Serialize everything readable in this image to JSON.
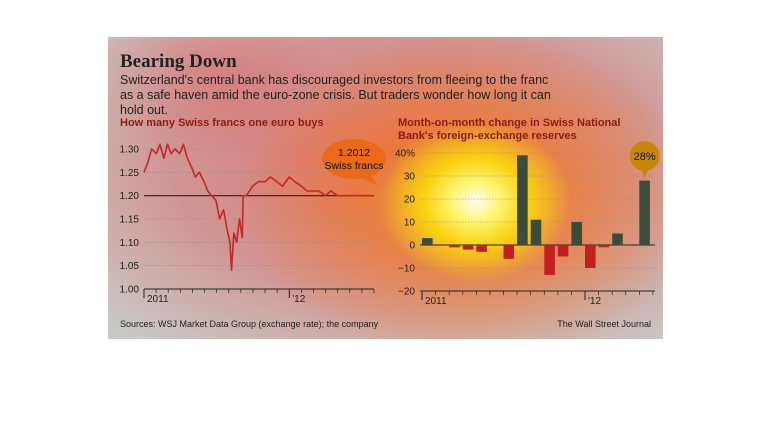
{
  "header": {
    "title": "Bearing Down",
    "subtitle": "Switzerland's central bank has discouraged investors from fleeing to the franc as a safe haven amid the euro-zone crisis. But traders wonder how long it can hold out."
  },
  "footer": {
    "sources": "Sources: WSJ Market Data Group (exchange rate); the company",
    "credit": "The Wall Street Journal"
  },
  "colors": {
    "line": "#c0282a",
    "positive_bar": "#3d4c3a",
    "negative_bar": "#c21e24",
    "callout": "#e86a1a",
    "callout_dark": "#c8870c"
  },
  "chart_data": [
    {
      "type": "line",
      "title": "How many Swiss francs one euro buys",
      "x_start": "2011-01",
      "x_end": "2012-08",
      "x_tick_labels": [
        "2011",
        "'12"
      ],
      "ylim": [
        1.0,
        1.3
      ],
      "y_ticks": [
        "1.30",
        "1.25",
        "1.20",
        "1.15",
        "1.10",
        "1.05",
        "1.00"
      ],
      "reference_line": 1.2,
      "annotation": {
        "value": "1.2012",
        "label": "Swiss francs"
      },
      "series": [
        {
          "x": [
            "2011-01-01",
            "2011-01-10",
            "2011-01-20",
            "2011-02-01",
            "2011-02-10",
            "2011-02-20",
            "2011-03-01",
            "2011-03-10",
            "2011-03-20",
            "2011-04-01",
            "2011-04-10",
            "2011-04-20",
            "2011-05-01",
            "2011-05-10",
            "2011-05-20",
            "2011-06-01",
            "2011-06-10",
            "2011-06-20",
            "2011-07-01",
            "2011-07-10",
            "2011-07-20",
            "2011-07-28",
            "2011-08-05",
            "2011-08-09",
            "2011-08-15",
            "2011-08-22",
            "2011-08-29",
            "2011-09-05",
            "2011-09-07",
            "2011-09-15",
            "2011-10-01",
            "2011-10-15",
            "2011-11-01",
            "2011-11-15",
            "2011-12-01",
            "2011-12-15",
            "2012-01-01",
            "2012-01-15",
            "2012-02-01",
            "2012-02-15",
            "2012-03-01",
            "2012-03-15",
            "2012-04-01",
            "2012-04-15",
            "2012-05-01",
            "2012-05-15",
            "2012-06-01",
            "2012-06-15",
            "2012-07-01",
            "2012-07-15",
            "2012-08-01"
          ],
          "y": [
            1.25,
            1.27,
            1.3,
            1.29,
            1.31,
            1.28,
            1.31,
            1.29,
            1.3,
            1.29,
            1.31,
            1.28,
            1.26,
            1.24,
            1.25,
            1.23,
            1.21,
            1.2,
            1.19,
            1.15,
            1.17,
            1.13,
            1.1,
            1.04,
            1.12,
            1.1,
            1.15,
            1.11,
            1.2,
            1.2,
            1.22,
            1.23,
            1.23,
            1.24,
            1.23,
            1.22,
            1.24,
            1.23,
            1.22,
            1.21,
            1.21,
            1.21,
            1.2,
            1.21,
            1.2,
            1.2,
            1.2,
            1.2,
            1.2,
            1.2,
            1.2
          ]
        }
      ]
    },
    {
      "type": "bar",
      "title": "Month-on-month change in Swiss National Bank's foreign-exchange reserves",
      "x_tick_labels": [
        "2011",
        "'12"
      ],
      "ylim": [
        -20,
        40
      ],
      "y_ticks": [
        "40%",
        "30",
        "20",
        "10",
        "0",
        "−10",
        "−20"
      ],
      "annotation": {
        "label": "28%"
      },
      "categories": [
        "2011-01",
        "2011-02",
        "2011-03",
        "2011-04",
        "2011-05",
        "2011-06",
        "2011-07",
        "2011-08",
        "2011-09",
        "2011-10",
        "2011-11",
        "2011-12",
        "2012-01",
        "2012-02",
        "2012-03",
        "2012-04",
        "2012-05"
      ],
      "values": [
        3,
        0,
        -1,
        -2,
        -3,
        0,
        -6,
        39,
        11,
        -13,
        -5,
        10,
        -10,
        -1,
        5,
        0,
        28
      ]
    }
  ]
}
